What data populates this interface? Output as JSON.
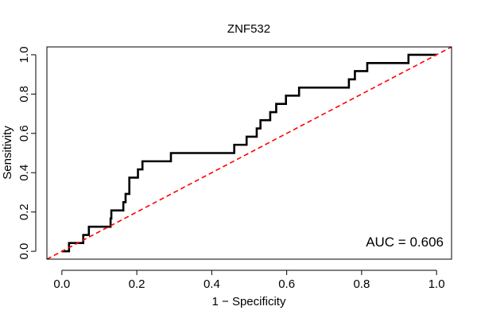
{
  "chart_data": {
    "type": "line",
    "title": "ZNF532",
    "xlabel": "1 − Specificity",
    "ylabel": "Sensitivity",
    "xlim": [
      -0.04,
      1.04
    ],
    "ylim": [
      -0.04,
      1.04
    ],
    "x_ticks": [
      0.0,
      0.2,
      0.4,
      0.6,
      0.8,
      1.0
    ],
    "y_ticks": [
      0.0,
      0.2,
      0.4,
      0.6,
      0.8,
      1.0
    ],
    "x_tick_labels": [
      "0.0",
      "0.2",
      "0.4",
      "0.6",
      "0.8",
      "1.0"
    ],
    "y_tick_labels": [
      "0.0",
      "0.2",
      "0.4",
      "0.6",
      "0.8",
      "1.0"
    ],
    "grid": false,
    "annotation": "AUC = 0.606",
    "colors": {
      "roc": "#000000",
      "reference": "#ff0000",
      "frame": "#000000"
    },
    "series": [
      {
        "style": "solid",
        "color": "#000000",
        "x": [
          0.0,
          0.019,
          0.019,
          0.057,
          0.057,
          0.072,
          0.072,
          0.13,
          0.13,
          0.132,
          0.132,
          0.164,
          0.164,
          0.17,
          0.17,
          0.18,
          0.18,
          0.203,
          0.203,
          0.215,
          0.215,
          0.291,
          0.291,
          0.46,
          0.46,
          0.493,
          0.493,
          0.52,
          0.52,
          0.53,
          0.53,
          0.556,
          0.556,
          0.572,
          0.572,
          0.598,
          0.598,
          0.633,
          0.633,
          0.766,
          0.766,
          0.782,
          0.782,
          0.815,
          0.815,
          0.925,
          0.925,
          1.0
        ],
        "y": [
          0.0,
          0.0,
          0.042,
          0.042,
          0.083,
          0.083,
          0.125,
          0.125,
          0.167,
          0.167,
          0.208,
          0.208,
          0.25,
          0.25,
          0.292,
          0.292,
          0.375,
          0.375,
          0.417,
          0.417,
          0.458,
          0.458,
          0.5,
          0.5,
          0.542,
          0.542,
          0.583,
          0.583,
          0.625,
          0.625,
          0.667,
          0.667,
          0.708,
          0.708,
          0.75,
          0.75,
          0.792,
          0.792,
          0.833,
          0.833,
          0.875,
          0.875,
          0.917,
          0.917,
          0.958,
          0.958,
          1.0,
          1.0
        ]
      },
      {
        "style": "dashed",
        "color": "#ff0000",
        "x": [
          -0.04,
          1.04
        ],
        "y": [
          -0.04,
          1.04
        ]
      }
    ]
  }
}
